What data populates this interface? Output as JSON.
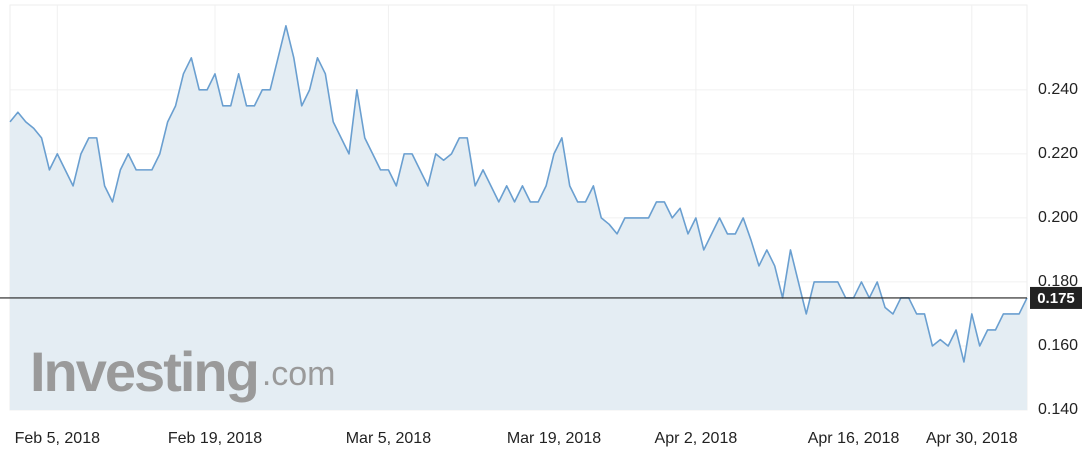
{
  "chart_data": {
    "type": "area",
    "categories": [
      null,
      null,
      null,
      null,
      null,
      null,
      "Feb 5, 2018",
      null,
      null,
      null,
      null,
      null,
      null,
      null,
      null,
      null,
      null,
      null,
      null,
      null,
      null,
      null,
      null,
      null,
      null,
      null,
      "Feb 19, 2018",
      null,
      null,
      null,
      null,
      null,
      null,
      null,
      null,
      null,
      null,
      null,
      null,
      null,
      null,
      null,
      null,
      null,
      null,
      null,
      null,
      null,
      "Mar 5, 2018",
      null,
      null,
      null,
      null,
      null,
      null,
      null,
      null,
      null,
      null,
      null,
      null,
      null,
      null,
      null,
      null,
      null,
      null,
      null,
      null,
      "Mar 19, 2018",
      null,
      null,
      null,
      null,
      null,
      null,
      null,
      null,
      null,
      null,
      null,
      null,
      null,
      null,
      null,
      null,
      null,
      "Apr 2, 2018",
      null,
      null,
      null,
      null,
      null,
      null,
      null,
      null,
      null,
      null,
      null,
      null,
      null,
      null,
      null,
      null,
      null,
      null,
      null,
      "Apr 16, 2018",
      null,
      null,
      null,
      null,
      null,
      null,
      null,
      null,
      null,
      null,
      null,
      null,
      null,
      null,
      "Apr 30, 2018",
      null,
      null,
      null,
      null,
      null,
      null,
      null
    ],
    "values": [
      0.23,
      0.233,
      0.23,
      0.228,
      0.225,
      0.215,
      0.22,
      0.215,
      0.21,
      0.22,
      0.225,
      0.225,
      0.21,
      0.205,
      0.215,
      0.22,
      0.215,
      0.215,
      0.215,
      0.22,
      0.23,
      0.235,
      0.245,
      0.25,
      0.24,
      0.24,
      0.245,
      0.235,
      0.235,
      0.245,
      0.235,
      0.235,
      0.24,
      0.24,
      0.25,
      0.26,
      0.25,
      0.235,
      0.24,
      0.25,
      0.245,
      0.23,
      0.225,
      0.22,
      0.24,
      0.225,
      0.22,
      0.215,
      0.215,
      0.21,
      0.22,
      0.22,
      0.215,
      0.21,
      0.22,
      0.218,
      0.22,
      0.225,
      0.225,
      0.21,
      0.215,
      0.21,
      0.205,
      0.21,
      0.205,
      0.21,
      0.205,
      0.205,
      0.21,
      0.22,
      0.225,
      0.21,
      0.205,
      0.205,
      0.21,
      0.2,
      0.198,
      0.195,
      0.2,
      0.2,
      0.2,
      0.2,
      0.205,
      0.205,
      0.2,
      0.203,
      0.195,
      0.2,
      0.19,
      0.195,
      0.2,
      0.195,
      0.195,
      0.2,
      0.193,
      0.185,
      0.19,
      0.185,
      0.175,
      0.19,
      0.18,
      0.17,
      0.18,
      0.18,
      0.18,
      0.18,
      0.175,
      0.175,
      0.18,
      0.175,
      0.18,
      0.172,
      0.17,
      0.175,
      0.175,
      0.17,
      0.17,
      0.16,
      0.162,
      0.16,
      0.165,
      0.155,
      0.17,
      0.16,
      0.165,
      0.165,
      0.17,
      0.17,
      0.17,
      0.175
    ],
    "color": "#6a9fd0",
    "fill_color": "#e4edf3",
    "ylim": [
      0.14,
      0.2665
    ],
    "yticks": [
      {
        "value": 0.14,
        "label": "0.140"
      },
      {
        "value": 0.16,
        "label": "0.160"
      },
      {
        "value": 0.18,
        "label": "0.180"
      },
      {
        "value": 0.2,
        "label": "0.200"
      },
      {
        "value": 0.22,
        "label": "0.220"
      },
      {
        "value": 0.24,
        "label": "0.240"
      }
    ],
    "grid": true,
    "last_price": {
      "value": 0.175,
      "label": "0.175"
    },
    "watermark": {
      "brand": "Investing",
      "suffix": ".com"
    }
  }
}
